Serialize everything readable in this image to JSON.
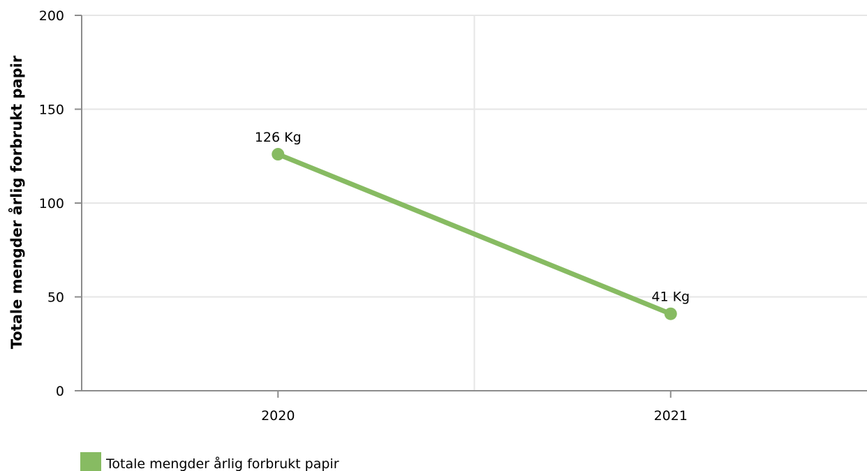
{
  "chart_data": {
    "type": "line",
    "title": "",
    "xlabel": "",
    "ylabel": "Totale mengder årlig forbrukt papir",
    "categories": [
      "2020",
      "2021"
    ],
    "series": [
      {
        "name": "Totale mengder årlig forbrukt papir",
        "values": [
          126,
          41
        ],
        "data_labels": [
          "126 Kg",
          "41 Kg"
        ],
        "color": "#87bb62"
      }
    ],
    "ylim": [
      0,
      200
    ],
    "yticks": [
      "0",
      "50",
      "100",
      "150",
      "200"
    ],
    "grid": true,
    "legend_position": "bottom-left"
  }
}
